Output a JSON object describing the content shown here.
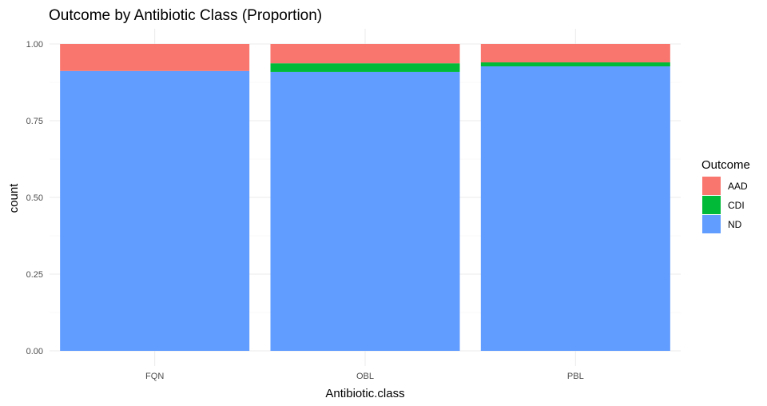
{
  "chart_data": {
    "type": "bar",
    "stacked": true,
    "title": "Outcome by Antibiotic Class (Proportion)",
    "xlabel": "Antibiotic.class",
    "ylabel": "count",
    "ylim": [
      0,
      1
    ],
    "yticks": [
      "0.00",
      "0.25",
      "0.50",
      "0.75",
      "1.00"
    ],
    "categories": [
      "FQN",
      "OBL",
      "PBL"
    ],
    "series": [
      {
        "name": "ND",
        "color": "#619CFF",
        "values": [
          0.912,
          0.909,
          0.927
        ]
      },
      {
        "name": "CDI",
        "color": "#00BA38",
        "values": [
          0.0,
          0.028,
          0.013
        ]
      },
      {
        "name": "AAD",
        "color": "#F8766D",
        "values": [
          0.088,
          0.063,
          0.06
        ]
      }
    ],
    "legend": {
      "title": "Outcome",
      "position": "right",
      "order": [
        "AAD",
        "CDI",
        "ND"
      ]
    },
    "grid": true
  }
}
